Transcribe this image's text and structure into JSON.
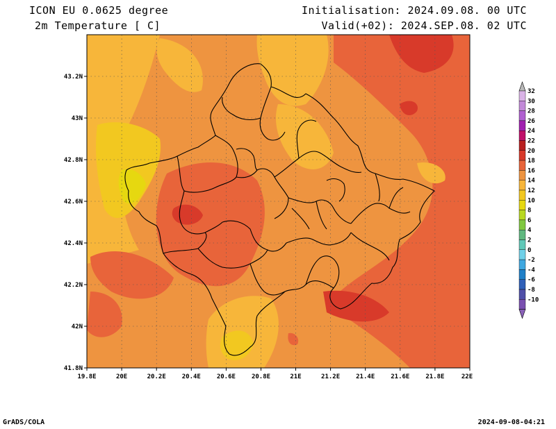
{
  "header": {
    "model": "ICON EU 0.0625 degree",
    "variable": "2m Temperature [ C]",
    "init": "Initialisation: 2024.09.08. 00 UTC",
    "valid": "Valid(+02): 2024.SEP.08. 02 UTC"
  },
  "axes": {
    "lat_labels": [
      "43.2N",
      "43N",
      "42.8N",
      "42.6N",
      "42.4N",
      "42.2N",
      "42N",
      "41.8N"
    ],
    "lon_labels": [
      "19.8E",
      "20E",
      "20.2E",
      "20.4E",
      "20.6E",
      "20.8E",
      "21E",
      "21.2E",
      "21.4E",
      "21.6E",
      "21.8E",
      "22E"
    ]
  },
  "colorbar": {
    "labels": [
      "32",
      "30",
      "28",
      "26",
      "24",
      "22",
      "20",
      "18",
      "16",
      "14",
      "12",
      "10",
      "8",
      "6",
      "4",
      "2",
      "0",
      "-2",
      "-4",
      "-6",
      "-8",
      "-10"
    ],
    "colors": [
      "#d9b3e6",
      "#c28ad8",
      "#b060d0",
      "#a020b0",
      "#c0106a",
      "#b82020",
      "#d83a2a",
      "#e8643a",
      "#ee9440",
      "#f7b63a",
      "#f2c820",
      "#e6d810",
      "#b8d820",
      "#80c840",
      "#60b880",
      "#60c8b8",
      "#70d0e8",
      "#40a8e0",
      "#2080c8",
      "#3060b8",
      "#5050a8",
      "#7a50b0"
    ]
  },
  "footer": {
    "left": "GrADS/COLA",
    "right": "2024-09-08-04:21"
  }
}
